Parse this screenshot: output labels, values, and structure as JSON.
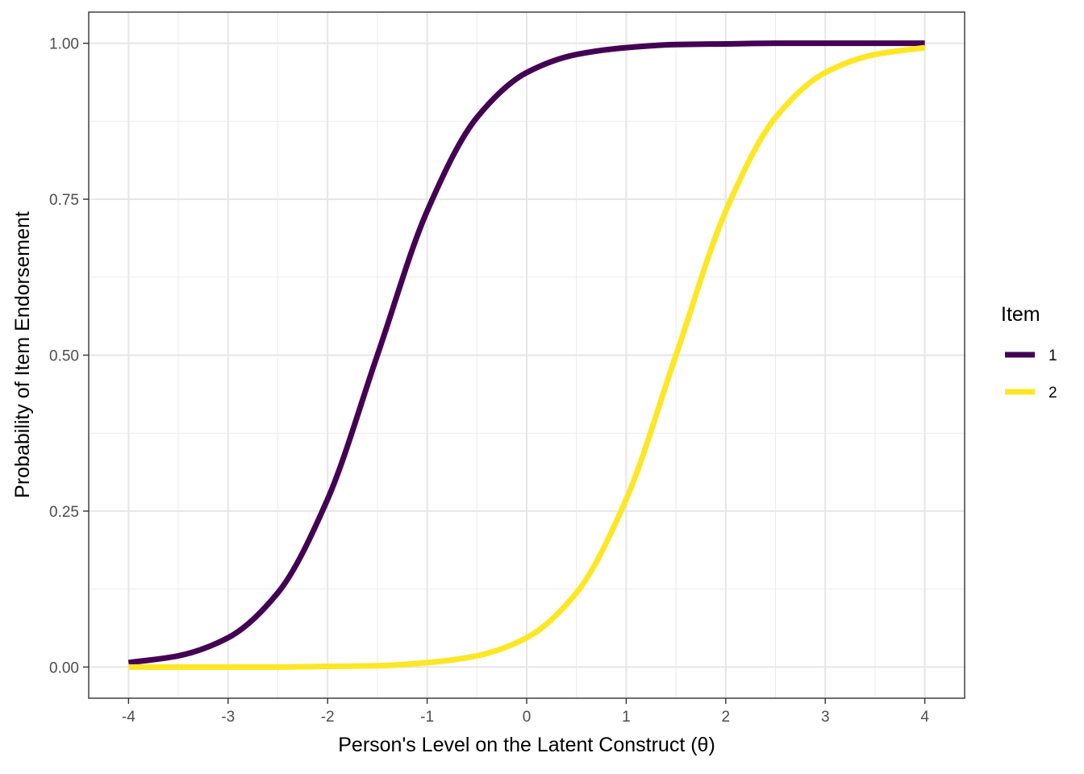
{
  "chart_data": {
    "type": "line",
    "title": "",
    "xlabel": "Person's Level on the Latent Construct (θ)",
    "ylabel": "Probability of Item Endorsement",
    "xlim": [
      -4.4,
      4.4
    ],
    "ylim": [
      -0.05,
      1.05
    ],
    "x_ticks": [
      -4,
      -3,
      -2,
      -1,
      0,
      1,
      2,
      3,
      4
    ],
    "x_tick_labels": [
      "-4",
      "-3",
      "-2",
      "-1",
      "0",
      "1",
      "2",
      "3",
      "4"
    ],
    "y_ticks": [
      0,
      0.25,
      0.5,
      0.75,
      1
    ],
    "y_tick_labels": [
      "0.00",
      "0.25",
      "0.50",
      "0.75",
      "1.00"
    ],
    "grid": true,
    "legend": {
      "title": "Item",
      "placement": "right"
    },
    "series": [
      {
        "name": "1",
        "color": "#440154",
        "x": [
          -4,
          -3.5,
          -3,
          -2.5,
          -2,
          -1.5,
          -1,
          -0.5,
          0,
          0.5,
          1,
          1.5,
          2,
          2.5,
          3,
          3.5,
          4
        ],
        "y": [
          0.007,
          0.018,
          0.047,
          0.119,
          0.269,
          0.5,
          0.731,
          0.881,
          0.953,
          0.982,
          0.993,
          0.998,
          0.999,
          1.0,
          1.0,
          1.0,
          1.0
        ]
      },
      {
        "name": "2",
        "color": "#FDE725",
        "x": [
          -4,
          -3.5,
          -3,
          -2.5,
          -2,
          -1.5,
          -1,
          -0.5,
          0,
          0.5,
          1,
          1.5,
          2,
          2.5,
          3,
          3.5,
          4
        ],
        "y": [
          0.0,
          0.0,
          0.0,
          0.0,
          0.001,
          0.002,
          0.007,
          0.018,
          0.047,
          0.119,
          0.269,
          0.5,
          0.731,
          0.881,
          0.953,
          0.982,
          0.993
        ]
      }
    ]
  }
}
